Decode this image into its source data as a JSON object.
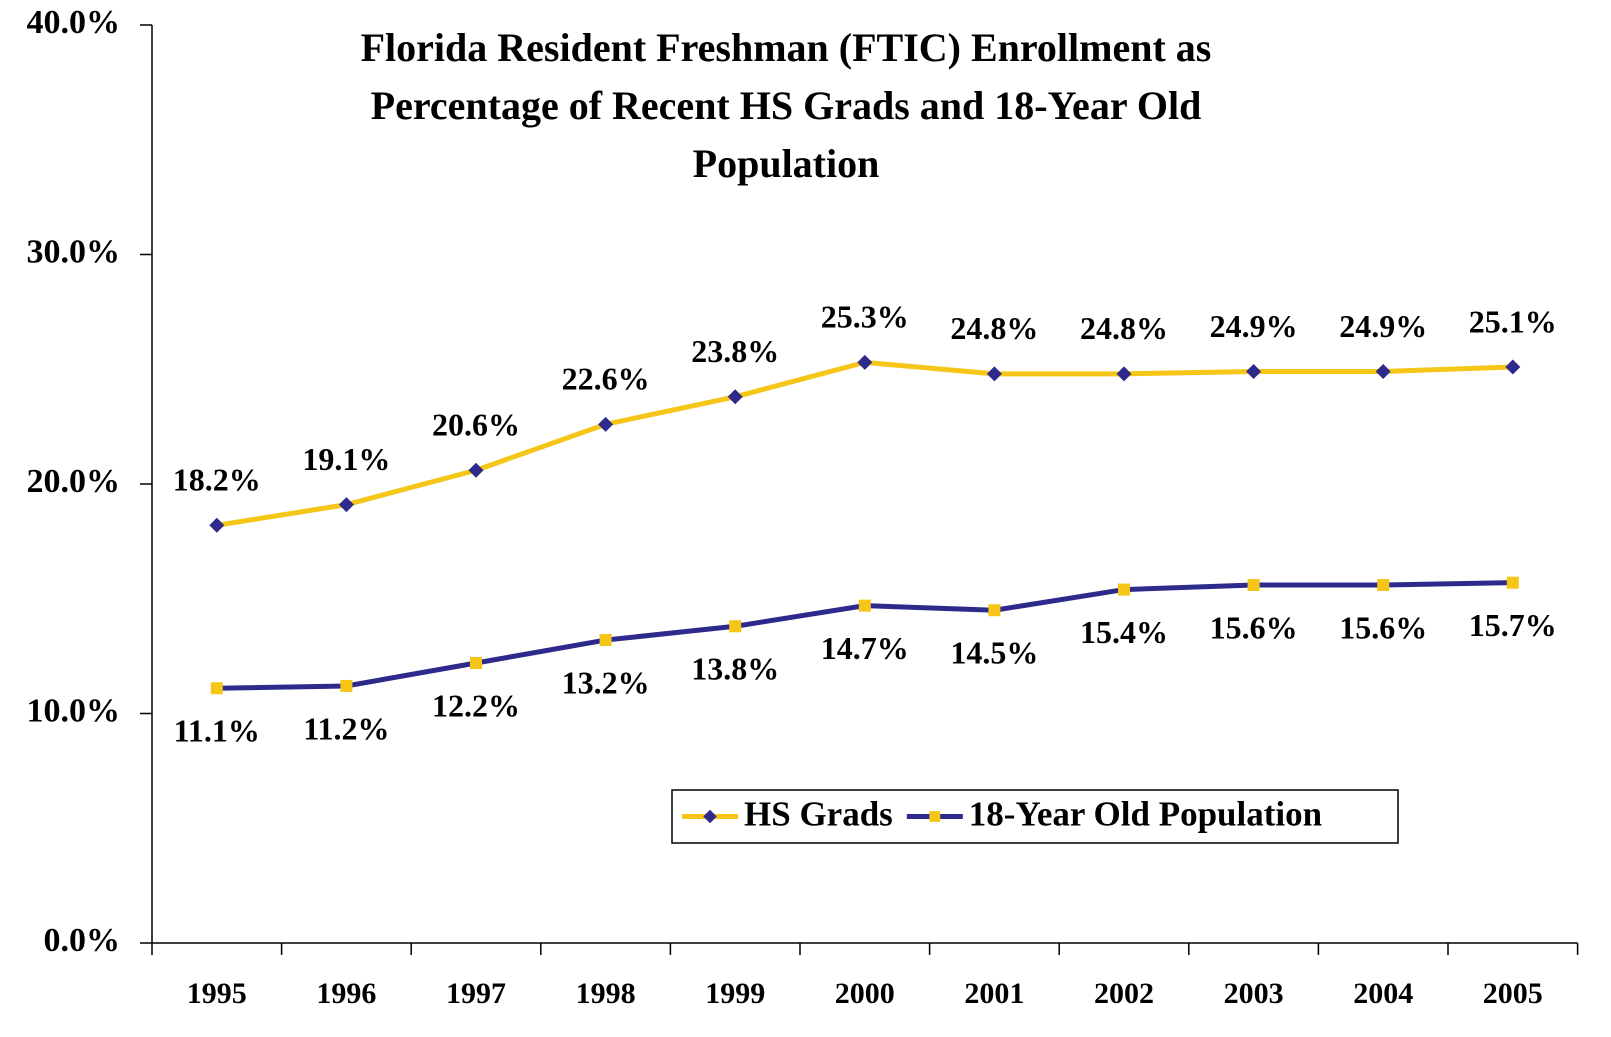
{
  "chart_data": {
    "type": "line",
    "title": [
      "Florida Resident Freshman (FTIC) Enrollment as",
      "Percentage of Recent HS Grads and 18-Year Old",
      "Population"
    ],
    "categories": [
      "1995",
      "1996",
      "1997",
      "1998",
      "1999",
      "2000",
      "2001",
      "2002",
      "2003",
      "2004",
      "2005"
    ],
    "series": [
      {
        "name": "HS Grads",
        "color": "#F5C518",
        "marker_color": "#2E2A8C",
        "marker": "diamond",
        "label_position": "above",
        "values": [
          18.2,
          19.1,
          20.6,
          22.6,
          23.8,
          25.3,
          24.8,
          24.8,
          24.9,
          24.9,
          25.1
        ],
        "value_labels": [
          "18.2%",
          "19.1%",
          "20.6%",
          "22.6%",
          "23.8%",
          "25.3%",
          "24.8%",
          "24.8%",
          "24.9%",
          "24.9%",
          "25.1%"
        ]
      },
      {
        "name": "18-Year Old Population",
        "color": "#2E2A8C",
        "marker_color": "#F5C518",
        "marker": "square",
        "label_position": "below",
        "values": [
          11.1,
          11.2,
          12.2,
          13.2,
          13.8,
          14.7,
          14.5,
          15.4,
          15.6,
          15.6,
          15.7
        ],
        "value_labels": [
          "11.1%",
          "11.2%",
          "12.2%",
          "13.2%",
          "13.8%",
          "14.7%",
          "14.5%",
          "15.4%",
          "15.6%",
          "15.6%",
          "15.7%"
        ]
      }
    ],
    "ylim": [
      0,
      40
    ],
    "yticks": [
      {
        "value": 0,
        "label": "0.0%"
      },
      {
        "value": 10,
        "label": "10.0%"
      },
      {
        "value": 20,
        "label": "20.0%"
      },
      {
        "value": 30,
        "label": "30.0%"
      },
      {
        "value": 40,
        "label": "40.0%"
      }
    ],
    "grid": false,
    "legend": "bottom-right"
  }
}
